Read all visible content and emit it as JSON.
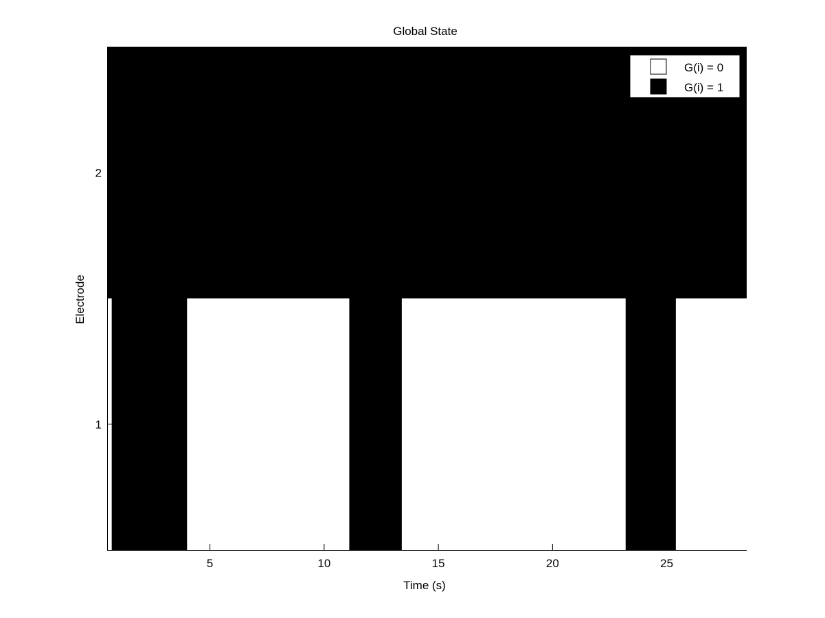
{
  "chart_data": {
    "type": "heatmap",
    "title": "Global State",
    "xlabel": "Time (s)",
    "ylabel": "Electrode",
    "xlim": [
      0.5,
      28.5
    ],
    "ylim": [
      0.5,
      2.5
    ],
    "xticks": [
      5,
      10,
      15,
      20,
      25
    ],
    "yticks": [
      1,
      2
    ],
    "grid": false,
    "legend_position": "top-right",
    "legend": [
      {
        "label": "G(i) = 0",
        "value": 0,
        "color": "#ffffff"
      },
      {
        "label": "G(i) = 1",
        "value": 1,
        "color": "#000000"
      }
    ],
    "rows": [
      {
        "electrode": 1,
        "segments": [
          {
            "start": 0.7,
            "end": 4.0,
            "value": 1
          },
          {
            "start": 4.0,
            "end": 11.1,
            "value": 0
          },
          {
            "start": 11.1,
            "end": 13.4,
            "value": 1
          },
          {
            "start": 13.4,
            "end": 23.2,
            "value": 0
          },
          {
            "start": 23.2,
            "end": 25.4,
            "value": 1
          },
          {
            "start": 25.4,
            "end": 28.5,
            "value": 0
          }
        ]
      },
      {
        "electrode": 2,
        "segments": [
          {
            "start": 0.5,
            "end": 28.5,
            "value": 1
          }
        ]
      }
    ]
  }
}
